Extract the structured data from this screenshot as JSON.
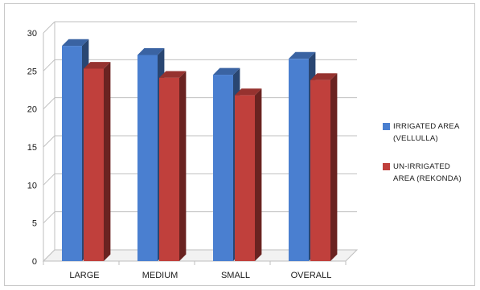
{
  "chart_data": {
    "type": "bar",
    "style": "3d-clustered-column",
    "categories": [
      "LARGE",
      "MEDIUM",
      "SMALL",
      "OVERALL"
    ],
    "series": [
      {
        "name": "IRRIGATED AREA\n(VELLULLA)",
        "color": "#4a7fd0",
        "values": [
          28.3,
          27.1,
          24.5,
          26.6
        ]
      },
      {
        "name": "UN-IRRIGATED\nAREA (REKONDA)",
        "color": "#c0403c",
        "values": [
          25.3,
          24.1,
          21.8,
          23.8
        ]
      }
    ],
    "ylim": [
      0,
      30
    ],
    "yticks": [
      "0",
      "5",
      "10",
      "15",
      "20",
      "25",
      "30"
    ],
    "grid": true,
    "legend_position": "right"
  }
}
